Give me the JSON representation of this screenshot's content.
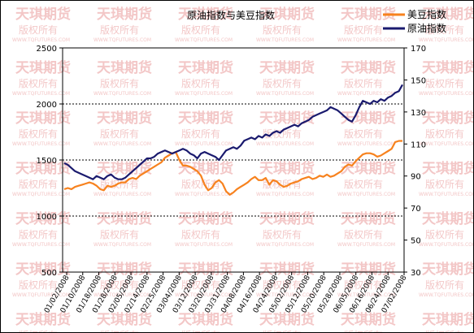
{
  "chart_data": {
    "type": "line",
    "title": "原油指数与美豆指数",
    "watermark": {
      "brand": "天琪期货",
      "rights": "版权所有",
      "site": "WWW.TQFUTURES.COM"
    },
    "x_tick_labels": [
      "01/02/2008",
      "01/10/2008",
      "01/18/2008",
      "01/28/2008",
      "02/05/2008",
      "02/14/2008",
      "02/25/2008",
      "03/04/2008",
      "03/12/2008",
      "03/20/2008",
      "03/31/2008",
      "04/08/2008",
      "04/16/2008",
      "04/24/2008",
      "05/02/2008",
      "05/12/2008",
      "05/20/2008",
      "05/28/2008",
      "06/05/2008",
      "06/16/2008",
      "06/24/2008",
      "07/02/2008"
    ],
    "y_left": {
      "ticks": [
        500,
        1000,
        1500,
        2000,
        2500
      ],
      "min": 500,
      "max": 2500
    },
    "y_right": {
      "ticks": [
        30,
        50,
        70,
        90,
        110,
        130,
        150,
        170
      ],
      "min": 30,
      "max": 170
    },
    "grid_lines_left": [
      1000,
      1500,
      2000
    ],
    "series": [
      {
        "name": "美豆指数",
        "axis": "left",
        "color": "#f7821e",
        "values": [
          1240,
          1250,
          1240,
          1260,
          1270,
          1280,
          1290,
          1300,
          1290,
          1270,
          1240,
          1230,
          1270,
          1260,
          1270,
          1290,
          1300,
          1300,
          1330,
          1340,
          1330,
          1360,
          1380,
          1400,
          1420,
          1440,
          1460,
          1480,
          1520,
          1540,
          1560,
          1570,
          1500,
          1450,
          1450,
          1440,
          1420,
          1400,
          1360,
          1280,
          1230,
          1250,
          1300,
          1320,
          1290,
          1220,
          1190,
          1210,
          1240,
          1260,
          1280,
          1300,
          1330,
          1350,
          1320,
          1320,
          1340,
          1280,
          1320,
          1310,
          1280,
          1260,
          1270,
          1290,
          1300,
          1310,
          1330,
          1340,
          1350,
          1330,
          1340,
          1360,
          1350,
          1370,
          1350,
          1360,
          1380,
          1400,
          1440,
          1460,
          1450,
          1490,
          1520,
          1550,
          1560,
          1560,
          1550,
          1530,
          1540,
          1560,
          1580,
          1600,
          1660,
          1670,
          1670
        ]
      },
      {
        "name": "原油指数",
        "axis": "right",
        "color": "#1a1a6e",
        "values": [
          98,
          97,
          95,
          93,
          92,
          91,
          90,
          89,
          88,
          90,
          89,
          88,
          90,
          91,
          89,
          88,
          88,
          89,
          91,
          93,
          95,
          97,
          99,
          101,
          101,
          102,
          104,
          105,
          106,
          105,
          104,
          105,
          106,
          107,
          106,
          104,
          103,
          101,
          104,
          105,
          104,
          103,
          102,
          100,
          103,
          106,
          107,
          108,
          107,
          109,
          112,
          113,
          114,
          113,
          115,
          114,
          116,
          115,
          117,
          118,
          117,
          119,
          120,
          121,
          122,
          121,
          123,
          124,
          125,
          127,
          128,
          129,
          130,
          131,
          133,
          132,
          131,
          129,
          127,
          125,
          124,
          128,
          133,
          137,
          136,
          135,
          137,
          136,
          138,
          137,
          139,
          140,
          142,
          143,
          147
        ]
      }
    ],
    "legend": {
      "position": "top-right"
    },
    "grid": true
  }
}
